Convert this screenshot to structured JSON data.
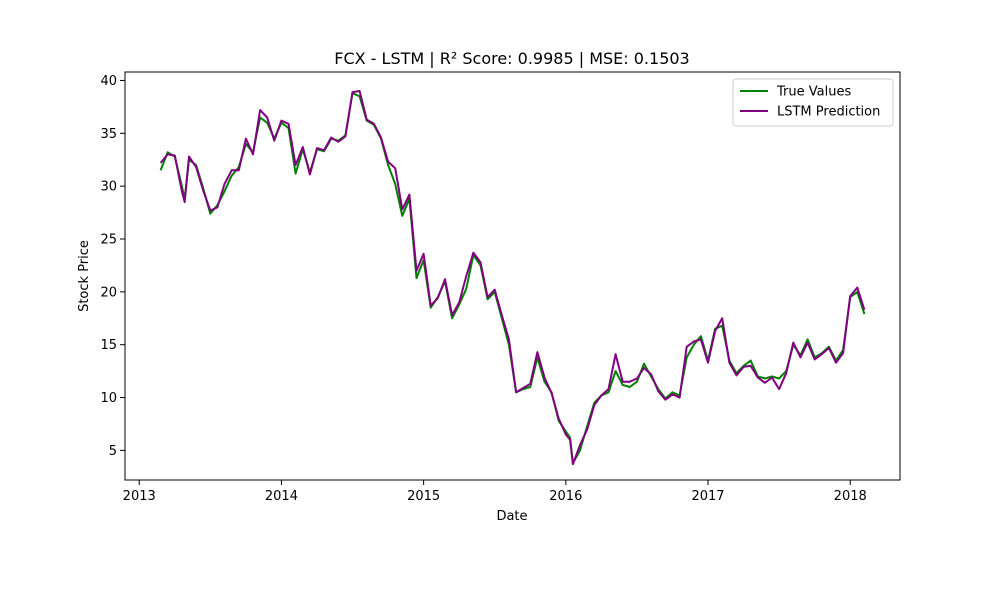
{
  "chart_data": {
    "type": "line",
    "title": "FCX - LSTM | R² Score: 0.9985 | MSE: 0.1503",
    "xlabel": "Date",
    "ylabel": "Stock Price",
    "xlim": [
      2012.9,
      2018.35
    ],
    "ylim": [
      2.2,
      40.8
    ],
    "x_ticks": [
      2013,
      2014,
      2015,
      2016,
      2017,
      2018
    ],
    "y_ticks": [
      5,
      10,
      15,
      20,
      25,
      30,
      35,
      40
    ],
    "grid": false,
    "legend_position": "upper right",
    "x": [
      2013.15,
      2013.2,
      2013.25,
      2013.3,
      2013.32,
      2013.35,
      2013.4,
      2013.45,
      2013.5,
      2013.55,
      2013.6,
      2013.65,
      2013.7,
      2013.75,
      2013.8,
      2013.85,
      2013.9,
      2013.95,
      2014.0,
      2014.05,
      2014.1,
      2014.15,
      2014.2,
      2014.25,
      2014.3,
      2014.35,
      2014.4,
      2014.45,
      2014.5,
      2014.55,
      2014.6,
      2014.65,
      2014.7,
      2014.75,
      2014.8,
      2014.85,
      2014.9,
      2014.95,
      2015.0,
      2015.05,
      2015.1,
      2015.15,
      2015.2,
      2015.25,
      2015.3,
      2015.35,
      2015.4,
      2015.45,
      2015.5,
      2015.55,
      2015.6,
      2015.65,
      2015.7,
      2015.75,
      2015.8,
      2015.85,
      2015.9,
      2015.95,
      2016.0,
      2016.03,
      2016.05,
      2016.1,
      2016.15,
      2016.2,
      2016.25,
      2016.3,
      2016.35,
      2016.4,
      2016.45,
      2016.5,
      2016.55,
      2016.6,
      2016.65,
      2016.7,
      2016.75,
      2016.8,
      2016.85,
      2016.9,
      2016.95,
      2017.0,
      2017.05,
      2017.1,
      2017.15,
      2017.2,
      2017.25,
      2017.3,
      2017.35,
      2017.4,
      2017.45,
      2017.5,
      2017.55,
      2017.6,
      2017.65,
      2017.7,
      2017.75,
      2017.8,
      2017.85,
      2017.9,
      2017.95,
      2018.0,
      2018.05,
      2018.1
    ],
    "series": [
      {
        "name": "True Values",
        "color": "#008000",
        "values": [
          31.5,
          33.2,
          32.8,
          30.0,
          28.8,
          32.5,
          32.0,
          29.8,
          27.4,
          28.2,
          29.5,
          31.0,
          31.8,
          34.0,
          33.2,
          36.5,
          36.0,
          34.5,
          36.0,
          35.5,
          31.2,
          33.5,
          31.3,
          33.5,
          33.3,
          34.5,
          34.3,
          34.8,
          38.8,
          38.5,
          36.2,
          35.8,
          34.5,
          32.0,
          30.2,
          27.2,
          28.8,
          21.3,
          23.0,
          18.5,
          19.5,
          21.0,
          17.5,
          18.8,
          20.3,
          23.5,
          22.5,
          19.3,
          20.0,
          17.5,
          15.0,
          10.5,
          10.8,
          11.0,
          13.8,
          11.5,
          10.5,
          7.8,
          6.8,
          6.2,
          3.8,
          5.0,
          7.3,
          9.5,
          10.2,
          10.5,
          12.5,
          11.2,
          11.0,
          11.5,
          13.2,
          12.0,
          10.8,
          9.9,
          10.5,
          10.2,
          13.8,
          15.0,
          15.8,
          13.5,
          16.5,
          16.8,
          13.5,
          12.3,
          13.0,
          13.5,
          12.0,
          11.8,
          12.0,
          11.8,
          12.5,
          15.0,
          14.0,
          15.5,
          13.8,
          14.2,
          14.8,
          13.5,
          14.5,
          19.5,
          20.0,
          17.9
        ]
      },
      {
        "name": "LSTM Prediction",
        "color": "#800080",
        "values": [
          32.2,
          33.0,
          32.9,
          29.5,
          28.5,
          32.8,
          31.8,
          29.6,
          27.7,
          28.0,
          30.2,
          31.5,
          31.5,
          34.5,
          33.0,
          37.2,
          36.5,
          34.3,
          36.2,
          35.9,
          32.0,
          33.7,
          31.1,
          33.6,
          33.4,
          34.6,
          34.2,
          34.7,
          38.9,
          39.0,
          36.3,
          35.9,
          34.6,
          32.3,
          31.7,
          27.8,
          29.2,
          22.0,
          23.6,
          18.7,
          19.4,
          21.2,
          17.8,
          19.0,
          21.5,
          23.7,
          22.8,
          19.5,
          20.2,
          17.8,
          15.5,
          10.5,
          10.9,
          11.3,
          14.3,
          11.9,
          10.4,
          8.0,
          6.5,
          6.0,
          3.7,
          5.5,
          7.0,
          9.3,
          10.2,
          10.8,
          14.1,
          11.5,
          11.5,
          11.8,
          12.8,
          12.2,
          10.6,
          9.8,
          10.3,
          10.0,
          14.8,
          15.3,
          15.5,
          13.3,
          16.3,
          17.5,
          13.3,
          12.1,
          12.9,
          13.0,
          11.9,
          11.4,
          11.9,
          10.8,
          12.3,
          15.2,
          13.8,
          15.2,
          13.6,
          14.1,
          14.7,
          13.3,
          14.2,
          19.6,
          20.4,
          18.3
        ]
      }
    ]
  }
}
